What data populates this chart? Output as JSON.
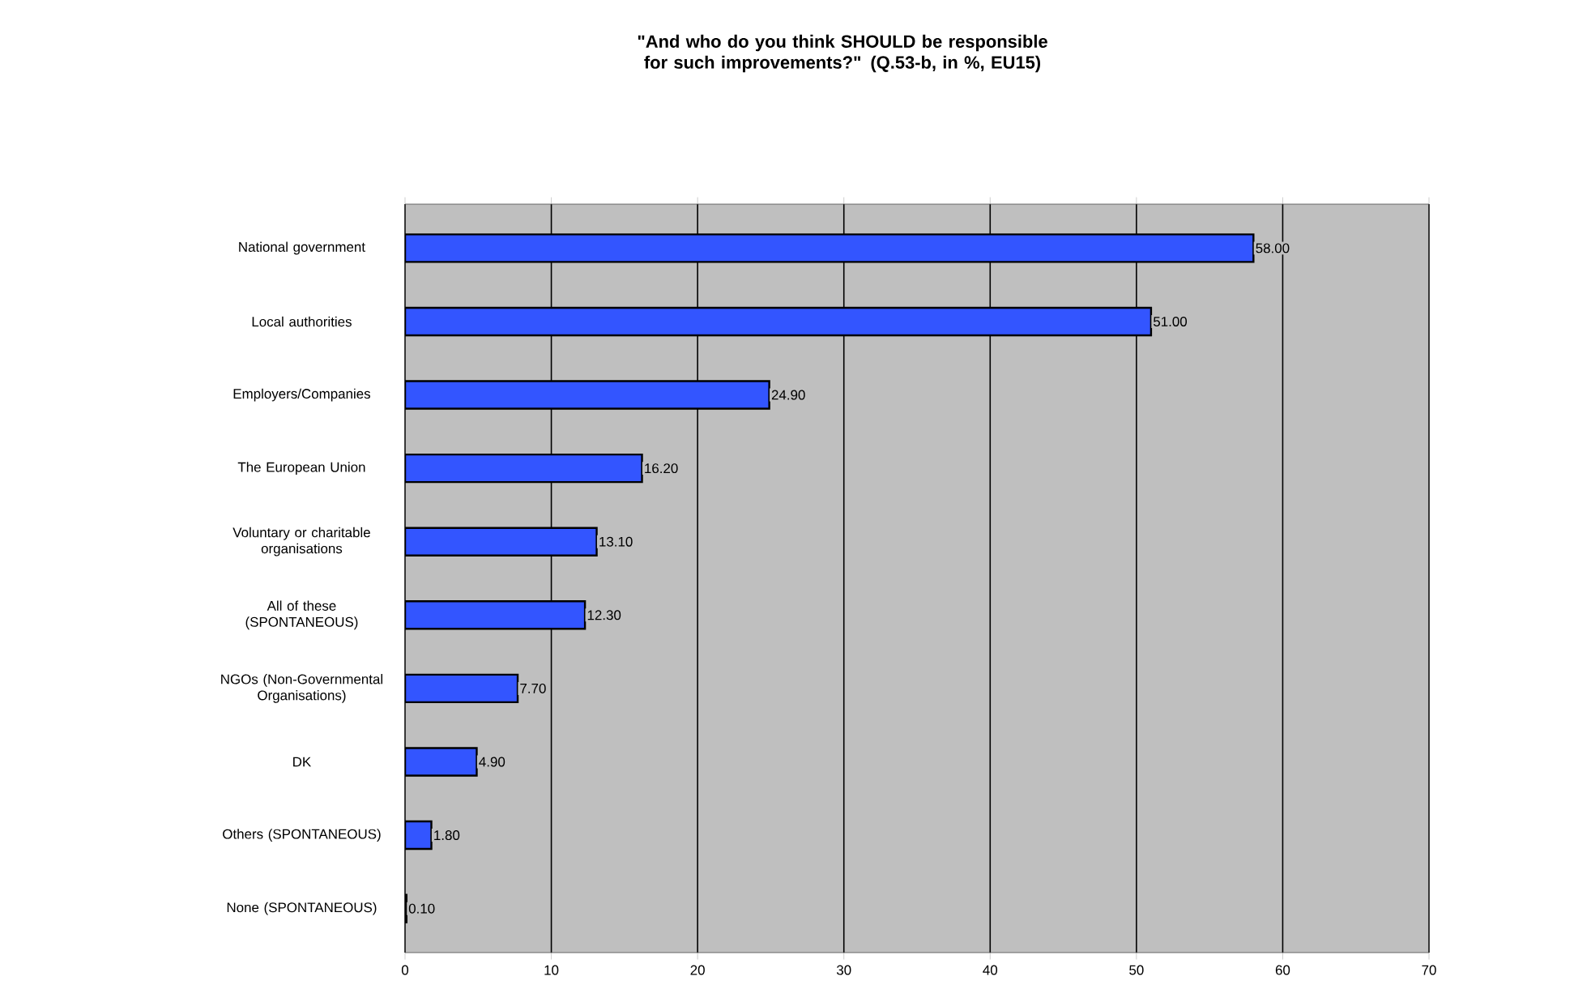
{
  "chart_data": {
    "type": "bar",
    "orientation": "horizontal",
    "title": "\"And who do you think SHOULD be responsible for such improvements?\" (Q.53-b, in %, EU15)",
    "categories": [
      "National government",
      "Local authorities",
      "Employers/Companies",
      "The European Union",
      "Voluntary or charitable organisations",
      "All of these (SPONTANEOUS)",
      "NGOs (Non-Governmental Organisations)",
      "DK",
      "Others (SPONTANEOUS)",
      "None (SPONTANEOUS)"
    ],
    "values": [
      58.0,
      51.0,
      24.9,
      16.2,
      13.1,
      12.3,
      7.7,
      4.9,
      1.8,
      0.1
    ],
    "value_labels": [
      "58.00",
      "51.00",
      "24.90",
      "16.20",
      "13.10",
      "12.30",
      "7.70",
      "4.90",
      "1.80",
      "0.10"
    ],
    "color": "#3355ff",
    "xlim": [
      0,
      70
    ],
    "xticks": [
      0,
      10,
      20,
      30,
      40,
      50,
      60,
      70
    ],
    "grid": "x"
  }
}
